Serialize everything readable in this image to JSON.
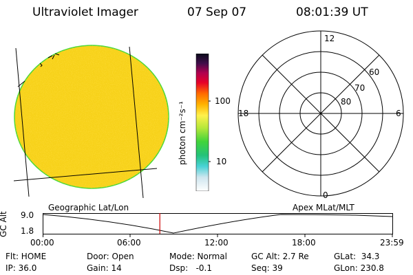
{
  "header": {
    "instrument": "Ultraviolet Imager",
    "date": "07 Sep 07",
    "time": "08:01:39 UT"
  },
  "colorbar": {
    "unit_label": "photon cm⁻²s⁻¹",
    "tick_100": "100",
    "tick_10": "10"
  },
  "polar": {
    "mlt_12": "12",
    "mlt_18": "18",
    "mlt_6": "6",
    "mlt_0": "0",
    "lat_60": "60",
    "lat_70": "70",
    "lat_80": "80"
  },
  "labels": {
    "geo": "Geographic Lat/Lon",
    "apex": "Apex MLat/MLT",
    "gc_alt_axis": "GC Alt",
    "alt_max": "9.0",
    "alt_min": "1.8"
  },
  "timeline": {
    "ticks": [
      "00:00",
      "06:00",
      "12:00",
      "18:00",
      "23:59"
    ],
    "current_fraction": 0.334
  },
  "status": {
    "flt": "Flt: HOME",
    "ip": "IP: 36.0",
    "door": "Door: Open",
    "gain": "Gain: 14",
    "mode": "Mode: Normal",
    "dsp": "Dsp:   -0.1",
    "gc_alt": "GC Alt: 2.7 Re",
    "seq": "Seq: 39",
    "glat": "GLat:  34.3",
    "glon": "GLon: 230.8"
  },
  "colors": {
    "disk": "#f7d21a",
    "limb": "#46d838",
    "cursor": "#cc0000"
  }
}
